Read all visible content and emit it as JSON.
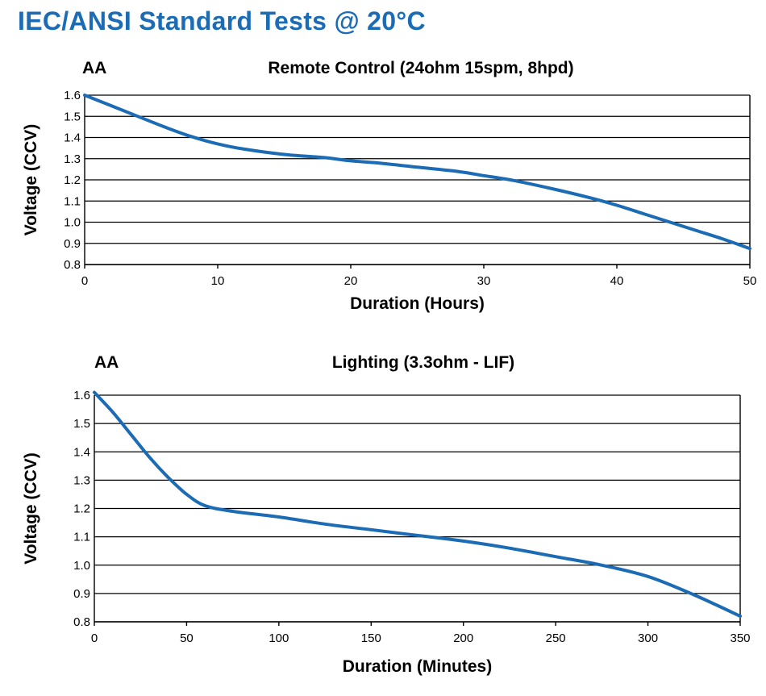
{
  "page": {
    "title": "IEC/ANSI Standard Tests @ 20°C",
    "title_color": "#1b6bb5"
  },
  "chart_data": [
    {
      "type": "line",
      "cell_label": "AA",
      "title": "Remote Control (24ohm  15spm, 8hpd)",
      "xlabel": "Duration (Hours)",
      "ylabel": "Voltage (CCV)",
      "xlim": [
        0,
        50
      ],
      "ylim": [
        0.8,
        1.6
      ],
      "xticks": [
        0,
        10,
        20,
        30,
        40,
        50
      ],
      "yticks": [
        0.8,
        0.9,
        1.0,
        1.1,
        1.2,
        1.3,
        1.4,
        1.5,
        1.6
      ],
      "grid": "horizontal",
      "series": [
        {
          "color": "#1b6bb5",
          "x": [
            0,
            2,
            4,
            6,
            8,
            10,
            12,
            15,
            18,
            20,
            22,
            25,
            28,
            30,
            32,
            35,
            38,
            40,
            42,
            44,
            46,
            48,
            50
          ],
          "y": [
            1.6,
            1.55,
            1.5,
            1.45,
            1.405,
            1.37,
            1.345,
            1.32,
            1.305,
            1.29,
            1.28,
            1.26,
            1.24,
            1.22,
            1.2,
            1.16,
            1.115,
            1.08,
            1.04,
            1.0,
            0.96,
            0.92,
            0.875
          ]
        }
      ]
    },
    {
      "type": "line",
      "cell_label": "AA",
      "title": "Lighting (3.3ohm - LIF)",
      "xlabel": "Duration (Minutes)",
      "ylabel": "Voltage (CCV)",
      "xlim": [
        0,
        350
      ],
      "ylim": [
        0.8,
        1.6
      ],
      "xticks": [
        0,
        50,
        100,
        150,
        200,
        250,
        300,
        350
      ],
      "yticks": [
        0.8,
        0.9,
        1.0,
        1.1,
        1.2,
        1.3,
        1.4,
        1.5,
        1.6
      ],
      "grid": "horizontal",
      "series": [
        {
          "color": "#1b6bb5",
          "x": [
            0,
            10,
            20,
            30,
            40,
            50,
            60,
            75,
            100,
            125,
            150,
            175,
            200,
            225,
            250,
            275,
            300,
            325,
            350
          ],
          "y": [
            1.61,
            1.54,
            1.46,
            1.38,
            1.31,
            1.25,
            1.21,
            1.19,
            1.17,
            1.145,
            1.125,
            1.105,
            1.085,
            1.06,
            1.03,
            1.0,
            0.96,
            0.895,
            0.82
          ]
        }
      ]
    }
  ]
}
